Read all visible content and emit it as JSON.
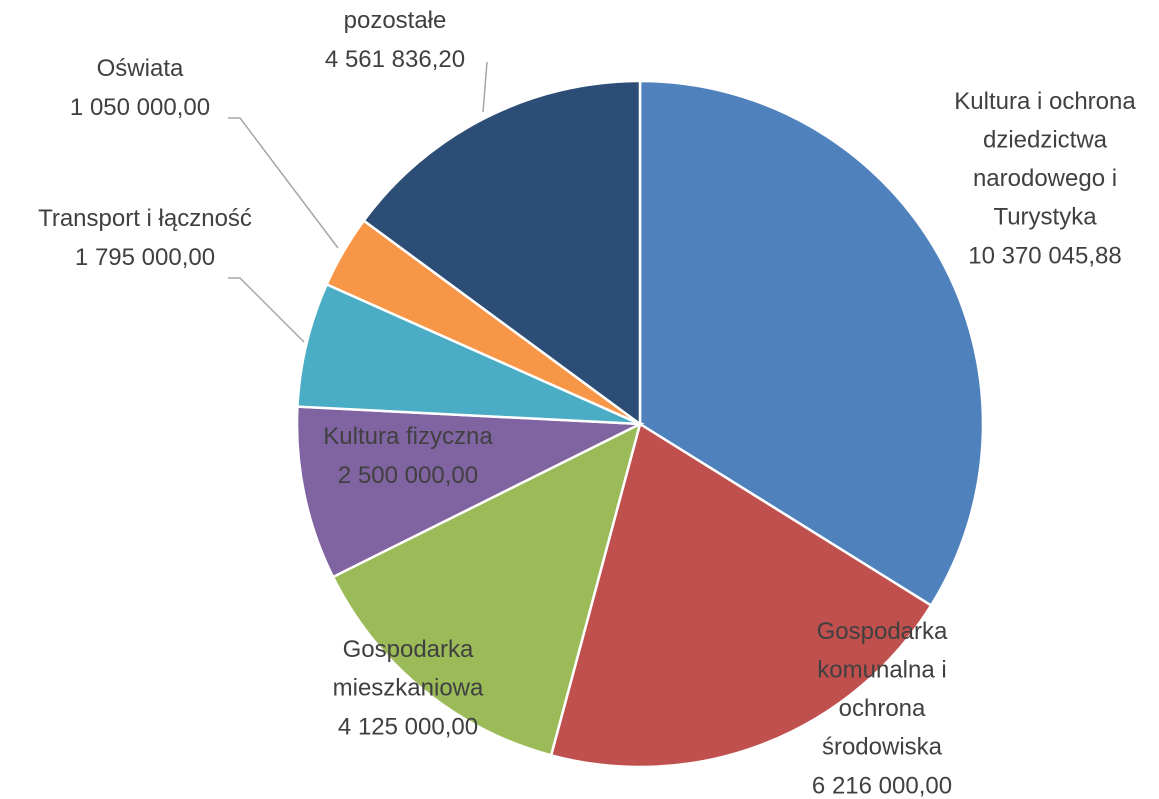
{
  "chart_data": {
    "type": "pie",
    "categories": [
      "Kultura i ochrona dziedzictwa narodowego i Turystyka",
      "Gospodarka komunalna i ochrona środowiska",
      "Gospodarka mieszkaniowa",
      "Kultura fizyczna",
      "Transport i łączność",
      "Oświata",
      "pozostałe"
    ],
    "values": [
      10370045.88,
      6216000,
      4125000,
      2500000,
      1795000,
      1050000,
      4561836.2
    ],
    "value_labels": [
      "10 370 045,88",
      "6 216 000,00",
      "4 125 000,00",
      "2 500 000,00",
      "1 795 000,00",
      "1 050 000,00",
      "4 561 836,20"
    ],
    "colors": [
      "#4f81bd",
      "#c0504d",
      "#9bbb59",
      "#8064a2",
      "#4bacc6",
      "#f79646",
      "#2c4d75"
    ]
  }
}
